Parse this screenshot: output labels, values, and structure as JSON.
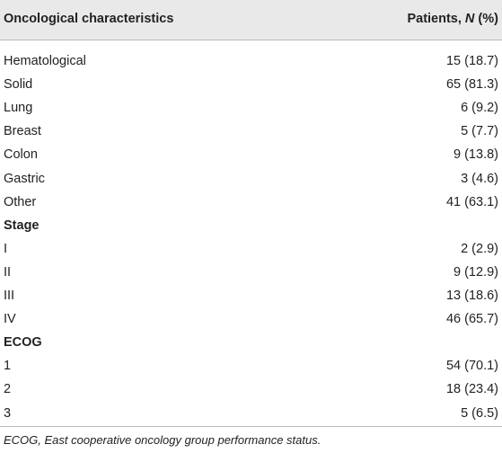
{
  "table": {
    "header": {
      "label": "Oncological characteristics",
      "value_parts": [
        "Patients, ",
        "N",
        " (%)"
      ]
    },
    "rows": [
      {
        "label": "Hematological",
        "value": "15 (18.7)"
      },
      {
        "label": "Solid",
        "value": "65 (81.3)"
      },
      {
        "label": "Lung",
        "value": "6 (9.2)"
      },
      {
        "label": "Breast",
        "value": "5 (7.7)"
      },
      {
        "label": "Colon",
        "value": "9 (13.8)"
      },
      {
        "label": "Gastric",
        "value": "3 (4.6)"
      },
      {
        "label": "Other",
        "value": "41 (63.1)"
      },
      {
        "label": "Stage",
        "heading": true
      },
      {
        "label": "I",
        "value": "2 (2.9)"
      },
      {
        "label": "II",
        "value": "9 (12.9)"
      },
      {
        "label": "III",
        "value": "13 (18.6)"
      },
      {
        "label": "IV",
        "value": "46 (65.7)"
      },
      {
        "label": "ECOG",
        "heading": true
      },
      {
        "label": "1",
        "value": "54 (70.1)"
      },
      {
        "label": "2",
        "value": "18 (23.4)"
      },
      {
        "label": "3",
        "value": "5 (6.5)"
      }
    ],
    "footnote": "ECOG, East cooperative oncology group performance status."
  }
}
